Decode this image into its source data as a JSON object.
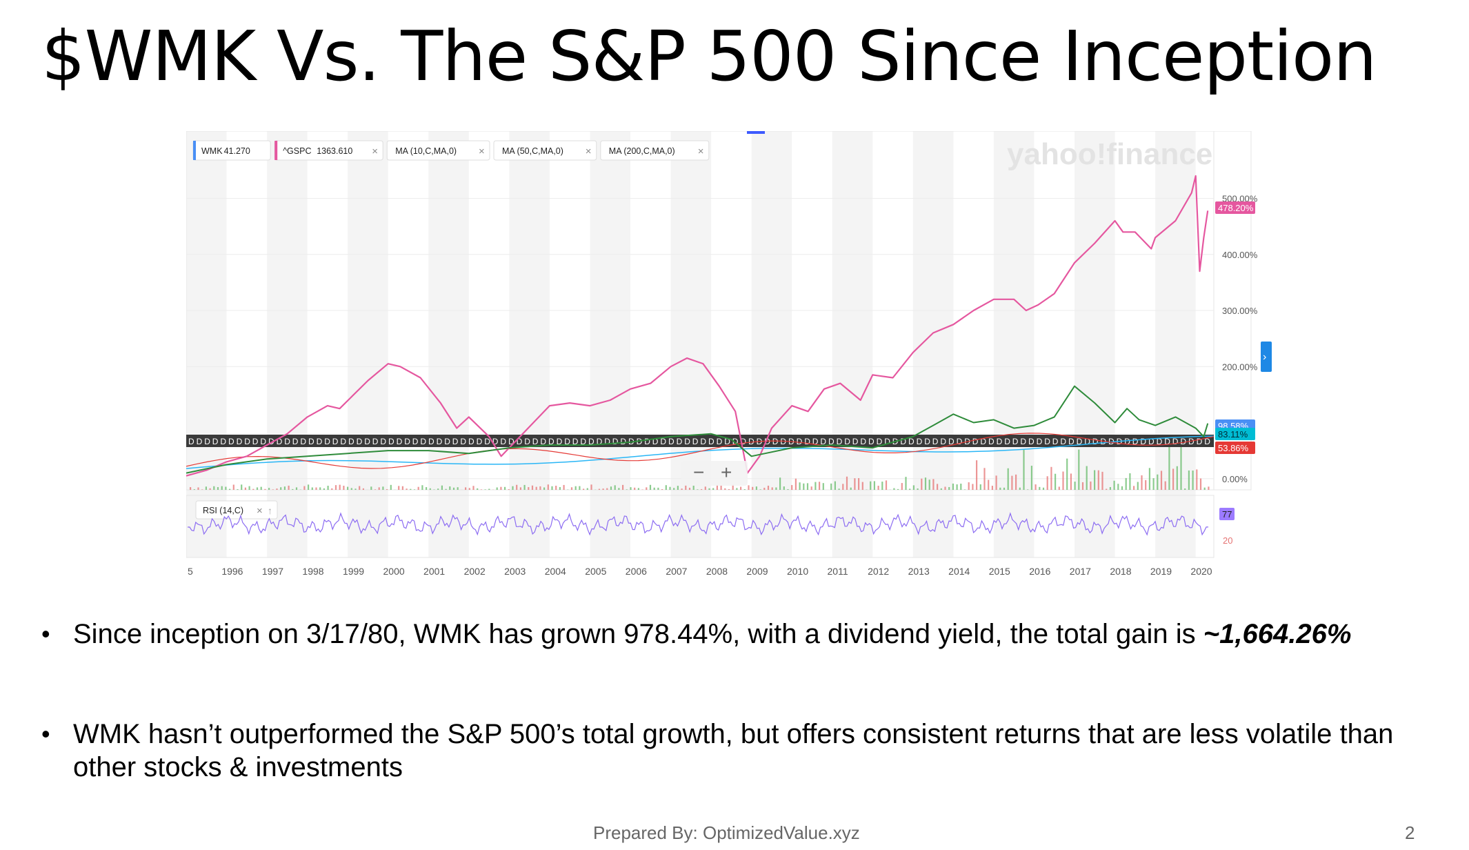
{
  "slide": {
    "title": "$WMK Vs. The S&P 500 Since Inception",
    "bullets": [
      {
        "text": "Since inception on 3/17/80, WMK has grown 978.44%, with a dividend yield, the total gain is ",
        "emphasis": "~1,664.26%"
      },
      {
        "text": "WMK hasn’t outperformed the S&P 500’s total growth, but offers consistent returns that are less volatile than other stocks & investments",
        "emphasis": ""
      }
    ],
    "footer": "Prepared By: OptimizedValue.xyz",
    "page_number": "2"
  },
  "chart_data": {
    "type": "line",
    "source_logo": "yahoo!finance",
    "legend_chips": [
      {
        "label": "WMK",
        "value": "41.270",
        "color": "#4a8ff5"
      },
      {
        "label": "^GSPC",
        "value": "1363.610",
        "color": "#e5579f"
      },
      {
        "label": "MA (10,C,MA,0)",
        "value": ""
      },
      {
        "label": "MA (50,C,MA,0)",
        "value": ""
      },
      {
        "label": "MA (200,C,MA,0)",
        "value": ""
      }
    ],
    "x_ticks": [
      "5",
      "1996",
      "1997",
      "1998",
      "1999",
      "2000",
      "2001",
      "2002",
      "2003",
      "2004",
      "2005",
      "2006",
      "2007",
      "2008",
      "2009",
      "2010",
      "2011",
      "2012",
      "2013",
      "2014",
      "2015",
      "2016",
      "2017",
      "2018",
      "2019",
      "2020"
    ],
    "y_ticks": [
      "500.00%",
      "400.00%",
      "300.00%",
      "200.00%",
      "0.00%"
    ],
    "y_tick_values": [
      500,
      400,
      300,
      200,
      0
    ],
    "ylim": [
      -20,
      620
    ],
    "series": [
      {
        "name": "^GSPC",
        "color": "#e5579f",
        "x": [
          1995.0,
          1995.5,
          1996.0,
          1996.5,
          1997.0,
          1997.5,
          1998.0,
          1998.5,
          1998.8,
          1999.5,
          2000.0,
          2000.3,
          2000.8,
          2001.3,
          2001.7,
          2002.0,
          2002.5,
          2002.8,
          2003.2,
          2003.6,
          2004.0,
          2004.5,
          2005.0,
          2005.5,
          2006.0,
          2006.5,
          2007.0,
          2007.4,
          2007.8,
          2008.2,
          2008.6,
          2008.9,
          2009.2,
          2009.5,
          2010.0,
          2010.4,
          2010.8,
          2011.2,
          2011.7,
          2012.0,
          2012.5,
          2013.0,
          2013.5,
          2014.0,
          2014.5,
          2015.0,
          2015.5,
          2015.8,
          2016.1,
          2016.5,
          2017.0,
          2017.5,
          2018.0,
          2018.2,
          2018.5,
          2018.9,
          2019.0,
          2019.5,
          2019.9,
          2020.0,
          2020.1,
          2020.2,
          2020.3
        ],
        "y": [
          5,
          15,
          30,
          40,
          60,
          80,
          110,
          130,
          125,
          175,
          205,
          200,
          180,
          135,
          90,
          110,
          75,
          40,
          70,
          100,
          130,
          135,
          130,
          140,
          160,
          170,
          200,
          215,
          205,
          165,
          120,
          10,
          40,
          90,
          130,
          120,
          160,
          170,
          140,
          185,
          180,
          225,
          260,
          275,
          300,
          320,
          320,
          300,
          310,
          330,
          385,
          420,
          460,
          440,
          440,
          410,
          430,
          460,
          510,
          540,
          370,
          430,
          478
        ]
      },
      {
        "name": "WMK",
        "color": "#2e8b3a",
        "x": [
          1995.0,
          1996.0,
          1997.0,
          1998.0,
          1999.0,
          2000.0,
          2001.0,
          2002.0,
          2003.0,
          2004.0,
          2005.0,
          2006.0,
          2007.0,
          2008.0,
          2008.5,
          2009.0,
          2010.0,
          2011.0,
          2012.0,
          2013.0,
          2013.5,
          2014.0,
          2014.5,
          2015.0,
          2015.5,
          2016.0,
          2016.5,
          2017.0,
          2017.5,
          2018.0,
          2018.3,
          2018.6,
          2019.0,
          2019.5,
          2020.0,
          2020.2,
          2020.3
        ],
        "y": [
          10,
          25,
          35,
          40,
          45,
          50,
          50,
          45,
          55,
          60,
          60,
          65,
          75,
          80,
          70,
          40,
          55,
          60,
          55,
          75,
          95,
          115,
          100,
          105,
          90,
          95,
          110,
          165,
          135,
          100,
          125,
          105,
          95,
          110,
          90,
          75,
          98.58
        ]
      }
    ],
    "value_badges": [
      {
        "label": "98.58%",
        "color": "#4a8ff5"
      },
      {
        "label": "83.11%",
        "color": "#00bcd4"
      },
      {
        "label": "53.86%",
        "color": "#e53935"
      },
      {
        "label": "478.20%",
        "color": "#e5579f"
      }
    ],
    "rsi_panel": {
      "label": "RSI (14,C)",
      "badge": "77",
      "tick": "20"
    }
  }
}
